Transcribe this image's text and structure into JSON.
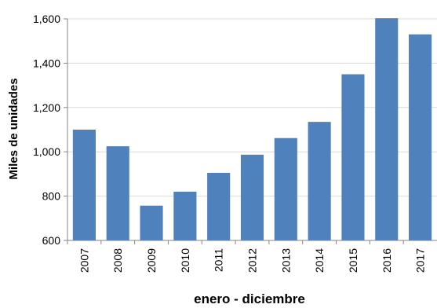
{
  "chart_data": {
    "type": "bar",
    "title": "",
    "xlabel": "enero - diciembre",
    "ylabel": "Miles de unidades",
    "categories": [
      "2007",
      "2008",
      "2009",
      "2010",
      "2011",
      "2012",
      "2013",
      "2014",
      "2015",
      "2016",
      "2017"
    ],
    "values": [
      1100,
      1025,
      757,
      820,
      905,
      987,
      1062,
      1135,
      1350,
      1603,
      1530
    ],
    "ylim": [
      600,
      1600
    ],
    "yticks": [
      "600",
      "800",
      "1,000",
      "1,200",
      "1,400",
      "1,600"
    ],
    "grid": true,
    "legend": "none",
    "bar_color": "#4f81bd"
  }
}
